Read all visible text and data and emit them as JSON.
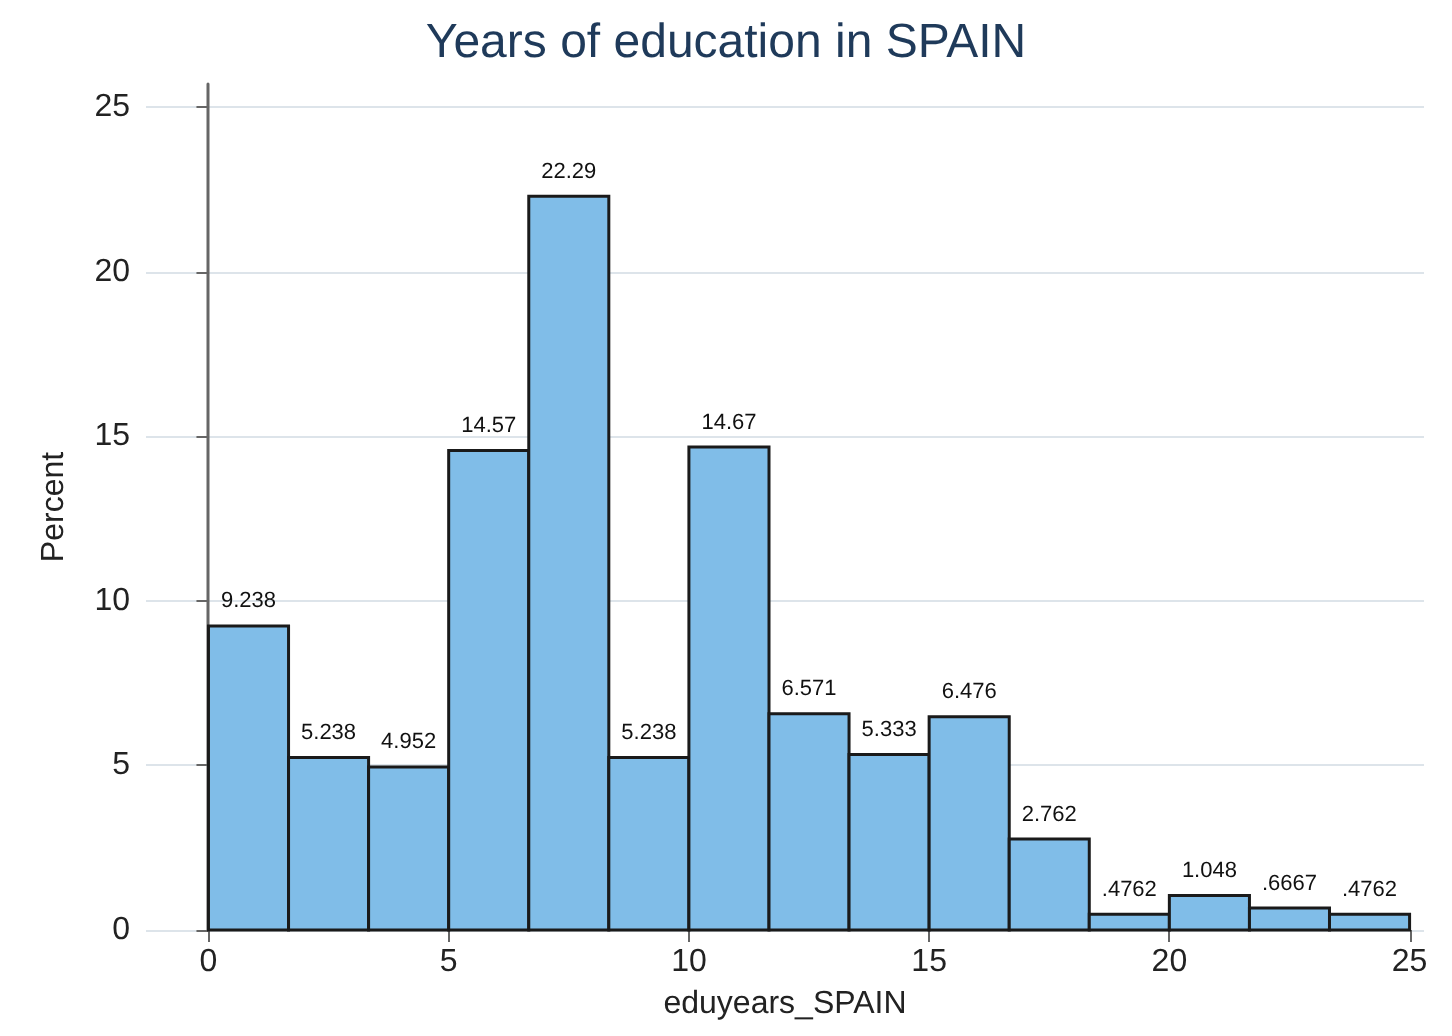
{
  "chart_data": {
    "type": "histogram",
    "title": "Years of education in SPAIN",
    "xlabel": "eduyears_SPAIN",
    "ylabel": "Percent",
    "bins": [
      0,
      1.667,
      3.333,
      5,
      6.667,
      8.333,
      10,
      11.667,
      13.333,
      15,
      16.667,
      18.333,
      20,
      21.667,
      23.333,
      25
    ],
    "values": [
      9.238,
      5.238,
      4.952,
      14.57,
      22.29,
      5.238,
      14.67,
      6.571,
      5.333,
      6.476,
      2.762,
      0.4762,
      1.048,
      0.6667,
      0.4762
    ],
    "value_labels": [
      "9.238",
      "5.238",
      "4.952",
      "14.57",
      "22.29",
      "5.238",
      "14.67",
      "6.571",
      "5.333",
      "6.476",
      "2.762",
      ".4762",
      "1.048",
      ".6667",
      ".4762"
    ],
    "color": "#80bde8",
    "xlim": [
      -1.3,
      25.3
    ],
    "xticks": [
      0,
      5,
      10,
      15,
      20,
      25
    ],
    "ylim": [
      0,
      25.7
    ],
    "yticks": [
      0,
      5,
      10,
      15,
      20,
      25
    ],
    "grid": "y"
  }
}
